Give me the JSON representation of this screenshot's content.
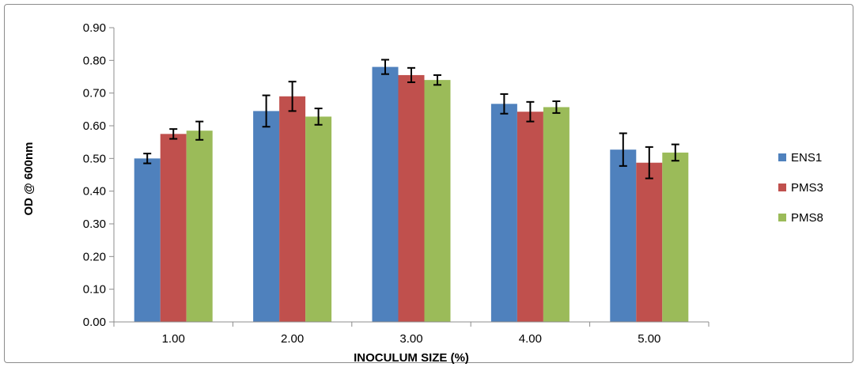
{
  "chart_data": {
    "type": "bar",
    "title": "",
    "xlabel": "INOCULUM SIZE (%)",
    "ylabel": "OD @ 600nm",
    "categories": [
      "1.00",
      "2.00",
      "3.00",
      "4.00",
      "5.00"
    ],
    "ylim": [
      0,
      0.9
    ],
    "yticks": [
      "0.00",
      "0.10",
      "0.20",
      "0.30",
      "0.40",
      "0.50",
      "0.60",
      "0.70",
      "0.80",
      "0.90"
    ],
    "grid": false,
    "legend_position": "right",
    "series": [
      {
        "name": "ENS1",
        "color": "#4f81bd",
        "values": [
          0.5,
          0.645,
          0.78,
          0.667,
          0.527
        ],
        "errors": [
          0.015,
          0.048,
          0.022,
          0.03,
          0.05
        ]
      },
      {
        "name": "PMS3",
        "color": "#c0504d",
        "values": [
          0.575,
          0.69,
          0.755,
          0.643,
          0.487
        ],
        "errors": [
          0.015,
          0.045,
          0.022,
          0.03,
          0.048
        ]
      },
      {
        "name": "PMS8",
        "color": "#9bbb59",
        "values": [
          0.585,
          0.628,
          0.74,
          0.657,
          0.518
        ],
        "errors": [
          0.028,
          0.025,
          0.015,
          0.018,
          0.025
        ]
      }
    ]
  }
}
